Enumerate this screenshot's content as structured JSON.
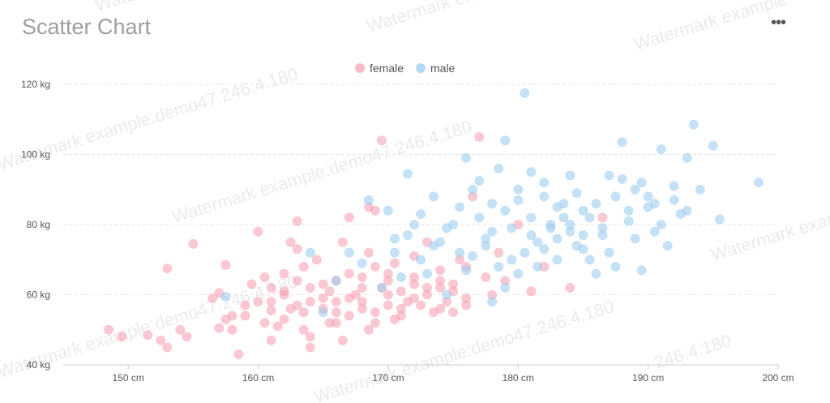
{
  "header": {
    "title": "Scatter Chart",
    "menu_icon": "more-horizontal-icon",
    "menu_label": "•••"
  },
  "watermark": {
    "text": "Watermark example:demo47.246.4.180",
    "short": "Watermark example",
    "tail": "246.4.180"
  },
  "colors": {
    "female": "#f6a3b5",
    "male": "#9fcdf0",
    "grid": "#e6e6e6",
    "axis": "#cccccc"
  },
  "chart_data": {
    "type": "scatter",
    "title": "Scatter Chart",
    "xlabel": "",
    "ylabel": "",
    "x_unit": "cm",
    "y_unit": "kg",
    "xlim": [
      145,
      200
    ],
    "ylim": [
      40,
      120
    ],
    "x_ticks": [
      "150 cm",
      "160 cm",
      "170 cm",
      "180 cm",
      "190 cm",
      "200 cm"
    ],
    "y_ticks": [
      "40 kg",
      "60 kg",
      "80 kg",
      "100 kg",
      "120 kg"
    ],
    "grid": true,
    "legend_position": "top-center",
    "series": [
      {
        "name": "female",
        "points": [
          [
            148.5,
            50
          ],
          [
            149.5,
            48
          ],
          [
            151.5,
            48.5
          ],
          [
            152.5,
            47
          ],
          [
            153,
            45
          ],
          [
            154,
            50
          ],
          [
            154.5,
            48
          ],
          [
            153,
            67.5
          ],
          [
            155,
            74.5
          ],
          [
            156.5,
            59
          ],
          [
            157,
            60.5
          ],
          [
            157.5,
            68.5
          ],
          [
            158,
            50
          ],
          [
            158.5,
            43
          ],
          [
            159,
            54
          ],
          [
            160,
            78
          ],
          [
            159.5,
            63
          ],
          [
            160.5,
            52
          ],
          [
            161,
            55.5
          ],
          [
            161,
            47
          ],
          [
            161.5,
            51
          ],
          [
            162,
            61
          ],
          [
            162,
            66
          ],
          [
            162.5,
            75
          ],
          [
            163,
            73
          ],
          [
            163,
            81
          ],
          [
            163.5,
            68
          ],
          [
            163.5,
            55
          ],
          [
            164,
            58
          ],
          [
            164,
            48
          ],
          [
            164.5,
            70
          ],
          [
            165,
            56
          ],
          [
            165.5,
            61
          ],
          [
            165.5,
            52
          ],
          [
            166,
            64
          ],
          [
            166,
            58
          ],
          [
            166.5,
            75
          ],
          [
            166.5,
            47
          ],
          [
            167,
            54
          ],
          [
            167,
            82
          ],
          [
            167.5,
            60
          ],
          [
            168,
            65
          ],
          [
            168,
            58
          ],
          [
            168.5,
            72
          ],
          [
            168.5,
            50
          ],
          [
            169,
            55
          ],
          [
            169,
            68
          ],
          [
            169.5,
            62
          ],
          [
            170,
            57
          ],
          [
            170,
            64
          ],
          [
            170.5,
            53
          ],
          [
            170.5,
            69
          ],
          [
            171,
            56
          ],
          [
            171,
            61
          ],
          [
            171.5,
            58
          ],
          [
            172,
            65
          ],
          [
            172,
            71
          ],
          [
            172.5,
            57
          ],
          [
            173,
            60
          ],
          [
            173,
            75
          ],
          [
            173.5,
            55
          ],
          [
            174,
            62
          ],
          [
            174,
            67
          ],
          [
            174.5,
            58
          ],
          [
            175,
            63
          ],
          [
            175,
            55
          ],
          [
            175.5,
            70
          ],
          [
            176,
            59
          ],
          [
            176.5,
            88
          ],
          [
            177,
            105
          ],
          [
            177.5,
            65
          ],
          [
            178,
            60
          ],
          [
            178.5,
            72
          ],
          [
            179,
            64
          ],
          [
            180,
            80
          ],
          [
            181,
            61
          ],
          [
            182,
            68
          ],
          [
            184,
            62
          ],
          [
            186.5,
            82
          ],
          [
            160.5,
            65
          ],
          [
            161,
            58
          ],
          [
            162,
            53
          ],
          [
            163,
            57
          ],
          [
            164,
            62
          ],
          [
            165,
            59
          ],
          [
            166,
            55
          ],
          [
            167,
            66
          ],
          [
            168,
            56
          ],
          [
            169,
            52
          ],
          [
            170,
            60
          ],
          [
            171,
            54
          ],
          [
            172,
            59
          ],
          [
            173,
            62
          ],
          [
            174,
            56
          ],
          [
            175,
            61
          ],
          [
            176,
            57
          ],
          [
            163.5,
            50
          ],
          [
            162.5,
            56
          ],
          [
            165,
            63
          ],
          [
            167,
            59
          ],
          [
            169.5,
            104
          ],
          [
            168.5,
            85
          ],
          [
            169,
            84
          ],
          [
            164,
            45
          ],
          [
            157,
            50.5
          ],
          [
            157.5,
            53
          ],
          [
            158,
            54
          ],
          [
            159,
            57
          ],
          [
            160,
            58
          ],
          [
            161,
            62
          ],
          [
            162,
            60
          ],
          [
            163,
            64
          ],
          [
            166,
            52
          ],
          [
            168,
            62
          ],
          [
            170,
            66
          ],
          [
            172,
            63
          ],
          [
            174,
            64
          ],
          [
            176,
            68
          ]
        ]
      },
      {
        "name": "male",
        "points": [
          [
            157.5,
            59.5
          ],
          [
            164,
            72
          ],
          [
            165,
            55
          ],
          [
            166,
            64
          ],
          [
            167,
            72
          ],
          [
            168,
            69
          ],
          [
            168.5,
            87
          ],
          [
            169.5,
            62
          ],
          [
            170,
            84
          ],
          [
            170.5,
            76
          ],
          [
            171,
            65
          ],
          [
            171.5,
            94.5
          ],
          [
            172,
            80
          ],
          [
            172.5,
            70
          ],
          [
            173,
            66
          ],
          [
            173.5,
            88
          ],
          [
            174,
            75
          ],
          [
            174.5,
            60
          ],
          [
            175,
            80
          ],
          [
            175.5,
            72
          ],
          [
            176,
            67
          ],
          [
            176.5,
            90
          ],
          [
            177,
            82
          ],
          [
            177.5,
            74
          ],
          [
            178,
            78
          ],
          [
            178.5,
            96
          ],
          [
            179,
            84
          ],
          [
            179.5,
            70
          ],
          [
            180,
            87
          ],
          [
            180.5,
            117.5
          ],
          [
            181,
            82
          ],
          [
            181.5,
            75
          ],
          [
            182,
            92
          ],
          [
            182.5,
            80
          ],
          [
            183,
            70
          ],
          [
            183.5,
            86
          ],
          [
            184,
            78
          ],
          [
            184.5,
            89
          ],
          [
            185,
            73
          ],
          [
            185.5,
            82
          ],
          [
            186,
            66
          ],
          [
            186.5,
            77
          ],
          [
            187,
            94
          ],
          [
            187.5,
            88
          ],
          [
            188,
            103.5
          ],
          [
            188.5,
            84
          ],
          [
            189,
            76
          ],
          [
            189.5,
            92
          ],
          [
            190,
            85
          ],
          [
            190.5,
            78
          ],
          [
            191,
            101.5
          ],
          [
            191.5,
            74
          ],
          [
            192,
            91
          ],
          [
            192.5,
            83
          ],
          [
            193,
            99
          ],
          [
            193.5,
            108.5
          ],
          [
            194,
            90
          ],
          [
            195,
            102.5
          ],
          [
            195.5,
            81.5
          ],
          [
            198.5,
            92
          ],
          [
            176,
            99
          ],
          [
            177,
            92.5
          ],
          [
            178,
            86
          ],
          [
            179,
            104
          ],
          [
            180,
            90
          ],
          [
            181,
            95
          ],
          [
            182,
            88
          ],
          [
            183,
            76
          ],
          [
            184,
            94
          ],
          [
            185,
            84
          ],
          [
            186,
            86
          ],
          [
            187,
            72
          ],
          [
            188,
            93
          ],
          [
            189,
            90
          ],
          [
            190,
            88
          ],
          [
            191,
            80
          ],
          [
            192,
            87
          ],
          [
            193,
            84
          ],
          [
            179.5,
            79
          ],
          [
            178.5,
            68
          ],
          [
            177.5,
            76
          ],
          [
            176.5,
            71
          ],
          [
            175.5,
            85
          ],
          [
            174.5,
            79
          ],
          [
            173.5,
            74
          ],
          [
            172.5,
            83
          ],
          [
            171.5,
            77
          ],
          [
            170.5,
            72
          ],
          [
            180.5,
            72
          ],
          [
            181.5,
            68
          ],
          [
            182.5,
            79
          ],
          [
            183.5,
            82
          ],
          [
            184.5,
            74
          ],
          [
            185.5,
            70
          ],
          [
            186.5,
            79
          ],
          [
            187.5,
            68
          ],
          [
            188.5,
            81
          ],
          [
            189.5,
            67
          ],
          [
            190.5,
            86
          ],
          [
            179,
            62
          ],
          [
            178,
            58
          ],
          [
            180,
            66
          ],
          [
            181,
            77
          ],
          [
            182,
            73
          ],
          [
            183,
            85
          ],
          [
            184,
            80
          ],
          [
            185,
            77
          ]
        ]
      }
    ]
  }
}
